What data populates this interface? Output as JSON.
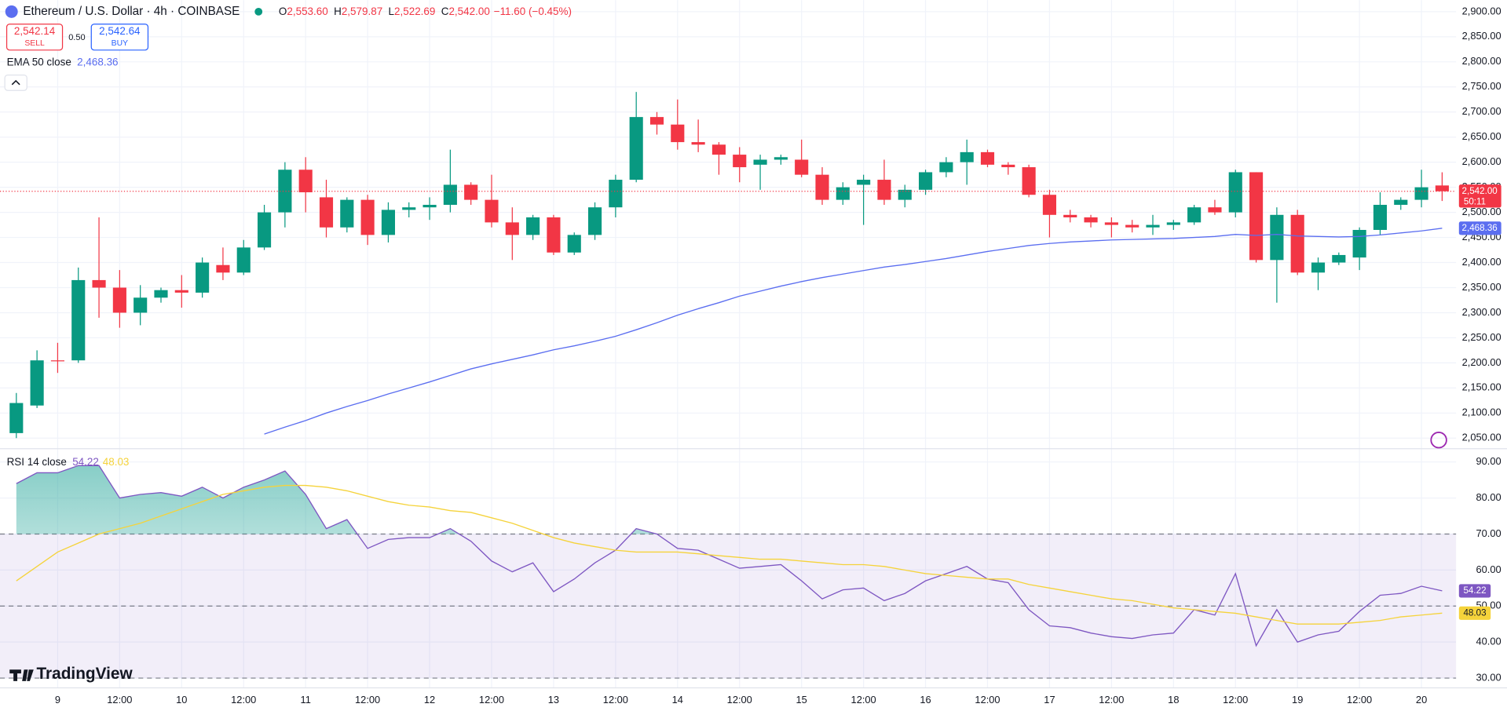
{
  "chart_data": [
    {
      "type": "candlestick",
      "title": "Ethereum / U.S. Dollar · 4h · COINBASE",
      "ohlc_legend": [
        {
          "key": "O",
          "text": "2,553.60"
        },
        {
          "key": "H",
          "text": "2,579.87"
        },
        {
          "key": "L",
          "text": "2,522.69"
        },
        {
          "key": "C",
          "text": "2,542.00"
        }
      ],
      "change": "−11.60 (−0.45%)",
      "sell": {
        "price": "2,542.14",
        "label": "SELL"
      },
      "spread": "0.50",
      "buy": {
        "price": "2,542.64",
        "label": "BUY"
      },
      "watermark": "TradingView",
      "up_color": "#089981",
      "down_color": "#f23645",
      "categories": [
        null,
        null,
        "9",
        null,
        null,
        "12:00",
        null,
        null,
        "10",
        null,
        null,
        "12:00",
        null,
        null,
        "11",
        null,
        null,
        "12:00",
        null,
        null,
        "12",
        null,
        null,
        "12:00",
        null,
        null,
        "13",
        null,
        null,
        "12:00",
        null,
        null,
        "14",
        null,
        null,
        "12:00",
        null,
        null,
        "15",
        null,
        null,
        "12:00",
        null,
        null,
        "16",
        null,
        null,
        "12:00",
        null,
        null,
        "17",
        null,
        null,
        "12:00",
        null,
        null,
        "18",
        null,
        null,
        "12:00",
        null,
        null,
        "19",
        null,
        null,
        "12:00",
        null,
        null,
        "20",
        null
      ],
      "open": [
        2060,
        2115,
        2205,
        2205,
        2365,
        2350,
        2300,
        2330,
        2345,
        2340,
        2395,
        2380,
        2430,
        2500,
        2585,
        2530,
        2470,
        2525,
        2455,
        2505,
        2510,
        2515,
        2555,
        2525,
        2480,
        2455,
        2490,
        2420,
        2455,
        2510,
        2565,
        2690,
        2675,
        2640,
        2635,
        2615,
        2595,
        2605,
        2605,
        2575,
        2525,
        2555,
        2565,
        2525,
        2545,
        2580,
        2600,
        2620,
        2595,
        2590,
        2535,
        2495,
        2490,
        2480,
        2475,
        2470,
        2475,
        2480,
        2510,
        2500,
        2580,
        2405,
        2495,
        2380,
        2400,
        2410,
        2465,
        2515,
        2525,
        2553.6
      ],
      "high": [
        2140,
        2225,
        2240,
        2390,
        2490,
        2385,
        2355,
        2350,
        2375,
        2410,
        2430,
        2445,
        2515,
        2600,
        2610,
        2565,
        2530,
        2535,
        2520,
        2520,
        2530,
        2625,
        2560,
        2575,
        2510,
        2495,
        2495,
        2460,
        2520,
        2575,
        2740,
        2700,
        2725,
        2685,
        2640,
        2630,
        2615,
        2615,
        2645,
        2590,
        2560,
        2575,
        2605,
        2555,
        2585,
        2610,
        2645,
        2625,
        2600,
        2595,
        2545,
        2505,
        2495,
        2490,
        2485,
        2495,
        2485,
        2515,
        2525,
        2585,
        2580,
        2510,
        2505,
        2410,
        2420,
        2470,
        2540,
        2530,
        2585,
        2579.87
      ],
      "low": [
        2050,
        2110,
        2180,
        2200,
        2290,
        2270,
        2275,
        2320,
        2310,
        2330,
        2365,
        2375,
        2425,
        2470,
        2500,
        2450,
        2460,
        2435,
        2440,
        2490,
        2485,
        2500,
        2515,
        2470,
        2405,
        2445,
        2415,
        2415,
        2445,
        2490,
        2560,
        2655,
        2625,
        2620,
        2575,
        2560,
        2545,
        2595,
        2570,
        2515,
        2515,
        2475,
        2515,
        2510,
        2535,
        2570,
        2555,
        2590,
        2575,
        2530,
        2450,
        2480,
        2470,
        2450,
        2460,
        2455,
        2465,
        2475,
        2495,
        2490,
        2400,
        2320,
        2375,
        2345,
        2395,
        2385,
        2455,
        2505,
        2510,
        2522.69
      ],
      "close": [
        2120,
        2205,
        2204,
        2365,
        2350,
        2300,
        2330,
        2345,
        2340,
        2400,
        2380,
        2430,
        2500,
        2585,
        2540,
        2470,
        2525,
        2455,
        2505,
        2510,
        2515,
        2555,
        2525,
        2480,
        2455,
        2490,
        2420,
        2455,
        2510,
        2565,
        2690,
        2675,
        2640,
        2635,
        2615,
        2590,
        2605,
        2610,
        2575,
        2525,
        2550,
        2565,
        2525,
        2545,
        2580,
        2600,
        2620,
        2595,
        2590,
        2535,
        2495,
        2490,
        2480,
        2475,
        2470,
        2475,
        2480,
        2510,
        2500,
        2580,
        2405,
        2495,
        2380,
        2400,
        2415,
        2465,
        2515,
        2525,
        2550,
        2542
      ],
      "ema": {
        "name": "EMA 50 close",
        "value_label": "2,468.36",
        "color": "#5b6ef0",
        "values": [
          null,
          null,
          null,
          null,
          null,
          null,
          null,
          null,
          null,
          null,
          null,
          null,
          2058,
          2072,
          2085,
          2100,
          2113,
          2125,
          2138,
          2150,
          2162,
          2175,
          2188,
          2198,
          2207,
          2216,
          2226,
          2234,
          2243,
          2253,
          2266,
          2280,
          2295,
          2308,
          2320,
          2333,
          2343,
          2353,
          2362,
          2370,
          2377,
          2384,
          2391,
          2396,
          2402,
          2408,
          2415,
          2422,
          2428,
          2434,
          2438,
          2441,
          2443,
          2445,
          2446,
          2447,
          2448,
          2450,
          2452,
          2456,
          2454,
          2456,
          2453,
          2452,
          2451,
          2452,
          2455,
          2459,
          2463,
          2468.36
        ]
      },
      "last_price": {
        "value": 2542,
        "label": "2,542.00",
        "countdown": "50:11"
      },
      "ylim": [
        2029,
        2923
      ],
      "yticks": [
        {
          "value": 2050,
          "label": "2,050.00"
        },
        {
          "value": 2100,
          "label": "2,100.00"
        },
        {
          "value": 2150,
          "label": "2,150.00"
        },
        {
          "value": 2200,
          "label": "2,200.00"
        },
        {
          "value": 2250,
          "label": "2,250.00"
        },
        {
          "value": 2300,
          "label": "2,300.00"
        },
        {
          "value": 2350,
          "label": "2,350.00"
        },
        {
          "value": 2400,
          "label": "2,400.00"
        },
        {
          "value": 2450,
          "label": "2,450.00"
        },
        {
          "value": 2500,
          "label": "2,500.00"
        },
        {
          "value": 2550,
          "label": "2,550.00"
        },
        {
          "value": 2600,
          "label": "2,600.00"
        },
        {
          "value": 2650,
          "label": "2,650.00"
        },
        {
          "value": 2700,
          "label": "2,700.00"
        },
        {
          "value": 2750,
          "label": "2,750.00"
        },
        {
          "value": 2800,
          "label": "2,800.00"
        },
        {
          "value": 2850,
          "label": "2,850.00"
        },
        {
          "value": 2900,
          "label": "2,900.00"
        }
      ],
      "grid": true
    },
    {
      "type": "line",
      "title": "RSI 14 close",
      "series": [
        {
          "color": "#7e57c2",
          "value_label": "54.22",
          "values": [
            84,
            87,
            87,
            89,
            89,
            80,
            81,
            81.5,
            80.5,
            83,
            80,
            83,
            85,
            87.5,
            81,
            71.5,
            74,
            66,
            68.5,
            69,
            69,
            71.5,
            68,
            62.5,
            59.5,
            62,
            54,
            57.5,
            62,
            65.5,
            71.5,
            70,
            66,
            65.5,
            63,
            60.5,
            61,
            61.5,
            57,
            52,
            54.5,
            55,
            51.5,
            53.5,
            57,
            59,
            61,
            57.5,
            56.5,
            49,
            44.5,
            44,
            42.5,
            41.5,
            41,
            42,
            42.5,
            49,
            47.5,
            59,
            39,
            49,
            40,
            42,
            43,
            48.5,
            53,
            53.5,
            55.5,
            54.22
          ]
        },
        {
          "color": "#f5d33b",
          "value_label": "48.03",
          "values": [
            57,
            61,
            65,
            67.5,
            70,
            71.5,
            73,
            75,
            77,
            79,
            81,
            82,
            83,
            83.5,
            83.5,
            83,
            82,
            80.5,
            79,
            78,
            77.5,
            76.5,
            76,
            74.5,
            73,
            71,
            69,
            67.5,
            66.5,
            65.5,
            65,
            65,
            65,
            64.5,
            64,
            63.5,
            63,
            63,
            62.5,
            62,
            61.5,
            61.5,
            61,
            60,
            59,
            58.5,
            58,
            57.5,
            57.5,
            56,
            55,
            54,
            53,
            52,
            51.5,
            50.5,
            49.5,
            49,
            48.5,
            48,
            47,
            46,
            45,
            45,
            45,
            45.5,
            46,
            47,
            47.5,
            48.03
          ]
        }
      ],
      "band": [
        30,
        70
      ],
      "hlines": [
        70,
        50,
        30
      ],
      "ylim": [
        27.3,
        93.7
      ],
      "yticks": [
        {
          "value": 30,
          "label": "30.00"
        },
        {
          "value": 40,
          "label": "40.00"
        },
        {
          "value": 50,
          "label": "50.00"
        },
        {
          "value": 60,
          "label": "60.00"
        },
        {
          "value": 70,
          "label": "70.00"
        },
        {
          "value": 80,
          "label": "80.00"
        },
        {
          "value": 90,
          "label": "90.00"
        }
      ],
      "grid": true
    }
  ]
}
